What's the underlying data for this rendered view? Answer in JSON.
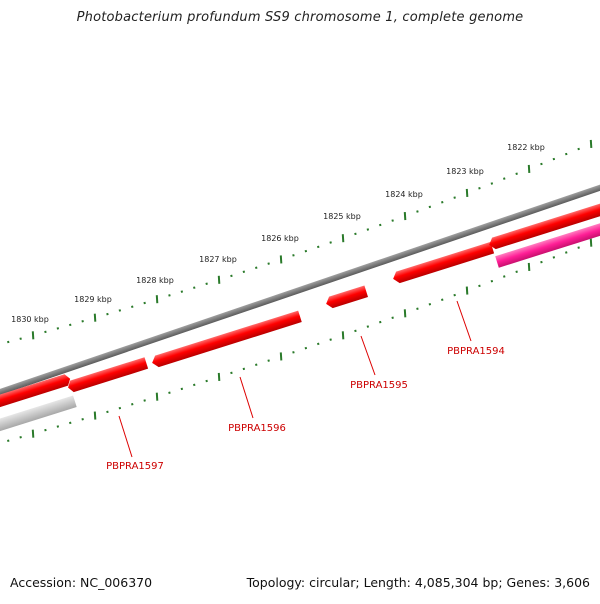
{
  "title": "Photobacterium profundum SS9 chromosome 1, complete genome",
  "scale": {
    "unit": "kbp",
    "labels": [
      "1830 kbp",
      "1829 kbp",
      "1828 kbp",
      "1827 kbp",
      "1826 kbp",
      "1825 kbp",
      "1824 kbp",
      "1823 kbp",
      "1822 kbp"
    ],
    "tick_color": "#2a7a2a"
  },
  "genes": [
    {
      "label": "PBPRA1594",
      "color": "#ff0000"
    },
    {
      "label": "PBPRA1595",
      "color": "#ff0000"
    },
    {
      "label": "PBPRA1596",
      "color": "#ff0000"
    },
    {
      "label": "PBPRA1597",
      "color": "#ff0000"
    }
  ],
  "colors": {
    "gene": "#ff0000",
    "gene_label": "#cc0000",
    "pink_feature": "#ff1e96",
    "grey_feature": "#c8c8c8",
    "backbone": "#777777"
  },
  "footer": {
    "accession": "Accession: NC_006370",
    "stats": "Topology: circular; Length: 4,085,304 bp; Genes: 3,606"
  }
}
